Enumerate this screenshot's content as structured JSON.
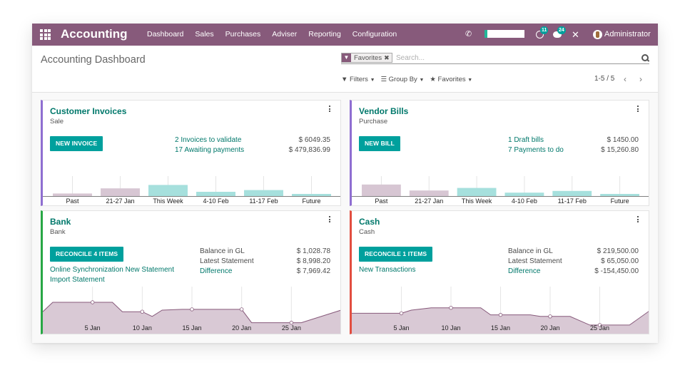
{
  "navbar": {
    "app_title": "Accounting",
    "menu": [
      "Dashboard",
      "Sales",
      "Purchases",
      "Adviser",
      "Reporting",
      "Configuration"
    ],
    "activity_count": "11",
    "message_count": "24",
    "user": "Administrator",
    "accent": "#875a7b"
  },
  "control_panel": {
    "title": "Accounting Dashboard",
    "facet_label": "Favorites",
    "search_placeholder": "Search...",
    "filters_label": "Filters",
    "groupby_label": "Group By",
    "favorites_label": "Favorites",
    "pager": "1-5 / 5"
  },
  "cards": [
    {
      "title": "Customer Invoices",
      "subtitle": "Sale",
      "button": "NEW INVOICE",
      "links": [
        "2 Invoices to validate",
        "17 Awaiting payments"
      ],
      "amounts": [
        "$ 6049.35",
        "$ 479,836.99"
      ]
    },
    {
      "title": "Vendor Bills",
      "subtitle": "Purchase",
      "button": "NEW BILL",
      "links": [
        "1 Draft bills",
        "7 Payments to do"
      ],
      "amounts": [
        "$ 1450.00",
        "$ 15,260.80"
      ]
    },
    {
      "title": "Bank",
      "subtitle": "Bank",
      "button": "RECONCILE 4 ITEMS",
      "links": [
        "Online Synchronization New Statement",
        "Import Statement"
      ],
      "labels": [
        "Balance in GL",
        "Latest Statement",
        "Difference"
      ],
      "amounts": [
        "$ 1,028.78",
        "$ 8,998.20",
        "$ 7,969.42"
      ]
    },
    {
      "title": "Cash",
      "subtitle": "Cash",
      "button": "RECONCILE 1 ITEMS",
      "links": [
        "New Transactions"
      ],
      "labels": [
        "Balance in GL",
        "Latest Statement",
        "Difference"
      ],
      "amounts": [
        "$ 219,500.00",
        "$ 65,050.00",
        "$ -154,450.00"
      ]
    }
  ],
  "chart_data": [
    {
      "type": "bar",
      "categories": [
        "Past",
        "21-27 Jan",
        "This Week",
        "4-10 Feb",
        "11-17 Feb",
        "Future"
      ],
      "values": [
        6,
        18,
        26,
        10,
        14,
        5
      ],
      "colors": [
        "#d7c6d3",
        "#d7c6d3",
        "#a6e0dd",
        "#a6e0dd",
        "#a6e0dd",
        "#a6e0dd"
      ],
      "ylim": [
        0,
        50
      ]
    },
    {
      "type": "bar",
      "categories": [
        "Past",
        "21-27 Jan",
        "This Week",
        "4-10 Feb",
        "11-17 Feb",
        "Future"
      ],
      "values": [
        27,
        13,
        19,
        8,
        12,
        5
      ],
      "colors": [
        "#d7c6d3",
        "#d7c6d3",
        "#a6e0dd",
        "#a6e0dd",
        "#a6e0dd",
        "#a6e0dd"
      ],
      "ylim": [
        0,
        50
      ]
    },
    {
      "type": "area",
      "x_ticks": [
        "5 Jan",
        "10 Jan",
        "15 Jan",
        "20 Jan",
        "25 Jan"
      ],
      "x": [
        0,
        1,
        5,
        7,
        8,
        10,
        11,
        12,
        14,
        16,
        17,
        20,
        21,
        23,
        24,
        25,
        26,
        30
      ],
      "y": [
        28,
        40,
        40,
        40,
        28,
        28,
        22,
        30,
        31,
        31,
        31,
        31,
        14,
        14,
        14,
        14,
        14,
        30
      ],
      "markers_at_x": [
        5,
        10,
        15,
        20,
        25
      ],
      "xlim": [
        0,
        30
      ],
      "ylim": [
        0,
        60
      ],
      "color": "#d9c9d5"
    },
    {
      "type": "area",
      "x_ticks": [
        "5 Jan",
        "10 Jan",
        "15 Jan",
        "20 Jan",
        "25 Jan"
      ],
      "x": [
        0,
        4,
        5,
        6,
        8,
        10,
        13,
        14,
        15,
        18,
        19,
        20,
        21,
        22,
        24,
        25,
        28,
        30
      ],
      "y": [
        26,
        26,
        26,
        30,
        33,
        33,
        33,
        24,
        24,
        24,
        22,
        22,
        22,
        22,
        11,
        11,
        11,
        29
      ],
      "markers_at_x": [
        5,
        10,
        15,
        20,
        25
      ],
      "xlim": [
        0,
        30
      ],
      "ylim": [
        0,
        60
      ],
      "color": "#d9c9d5"
    }
  ]
}
